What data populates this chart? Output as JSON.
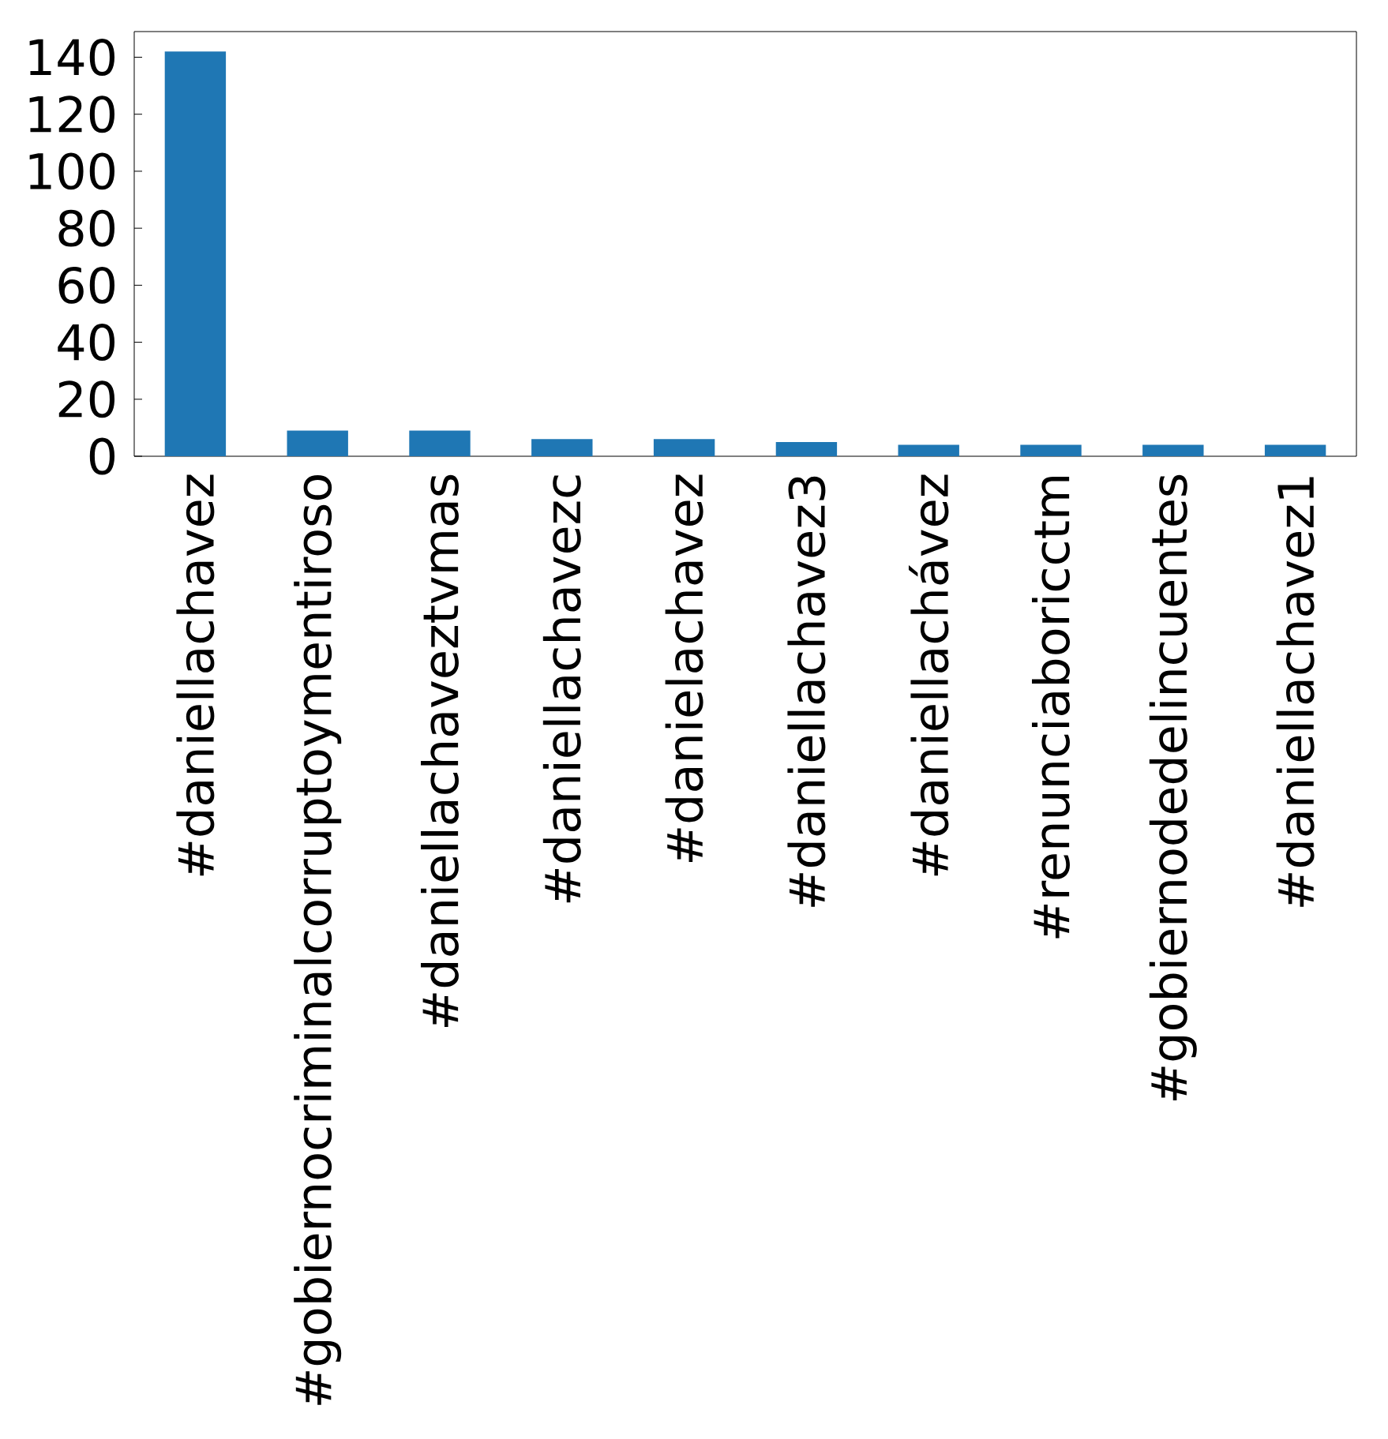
{
  "chart_data": {
    "type": "bar",
    "categories": [
      "#daniellachavez",
      "#gobiernocriminalcorruptoymentiroso",
      "#daniellachaveztvmas",
      "#daniellachavezc",
      "#danielachavez",
      "#daniellachavez3",
      "#daniellachávez",
      "#renunciaboricctm",
      "#gobiernodedelincuentes",
      "#daniellachavez1"
    ],
    "values": [
      142,
      9,
      9,
      6,
      6,
      5,
      4,
      4,
      4,
      4
    ],
    "color": "#1f77b4",
    "ylim": [
      0,
      149
    ],
    "yticks": [
      0,
      20,
      40,
      60,
      80,
      100,
      120,
      140
    ],
    "grid": false
  }
}
